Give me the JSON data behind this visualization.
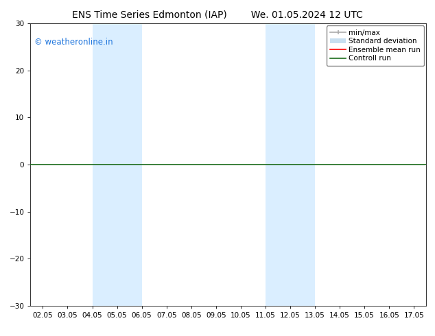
{
  "title_left": "ENS Time Series Edmonton (IAP)",
  "title_right": "We. 01.05.2024 12 UTC",
  "ylim": [
    -30,
    30
  ],
  "yticks": [
    -30,
    -20,
    -10,
    0,
    10,
    20,
    30
  ],
  "xtick_labels": [
    "02.05",
    "03.05",
    "04.05",
    "05.05",
    "06.05",
    "07.05",
    "08.05",
    "09.05",
    "10.05",
    "11.05",
    "12.05",
    "13.05",
    "14.05",
    "15.05",
    "16.05",
    "17.05"
  ],
  "xtick_positions": [
    0,
    1,
    2,
    3,
    4,
    5,
    6,
    7,
    8,
    9,
    10,
    11,
    12,
    13,
    14,
    15
  ],
  "xlim": [
    -0.5,
    15.5
  ],
  "shaded_bands": [
    {
      "xmin": 2,
      "xmax": 4,
      "color": "#daeeff"
    },
    {
      "xmin": 9,
      "xmax": 11,
      "color": "#daeeff"
    }
  ],
  "zero_line_y": 0,
  "zero_line_color": "#1a6b1a",
  "zero_line_lw": 1.2,
  "watermark": "© weatheronline.in",
  "watermark_color": "#2277dd",
  "legend_labels": [
    "min/max",
    "Standard deviation",
    "Ensemble mean run",
    "Controll run"
  ],
  "legend_colors": [
    "#aaaaaa",
    "#c8dff0",
    "red",
    "#1a6b1a"
  ],
  "background_color": "#ffffff",
  "title_fontsize": 10,
  "tick_fontsize": 7.5,
  "watermark_fontsize": 8.5,
  "legend_fontsize": 7.5
}
